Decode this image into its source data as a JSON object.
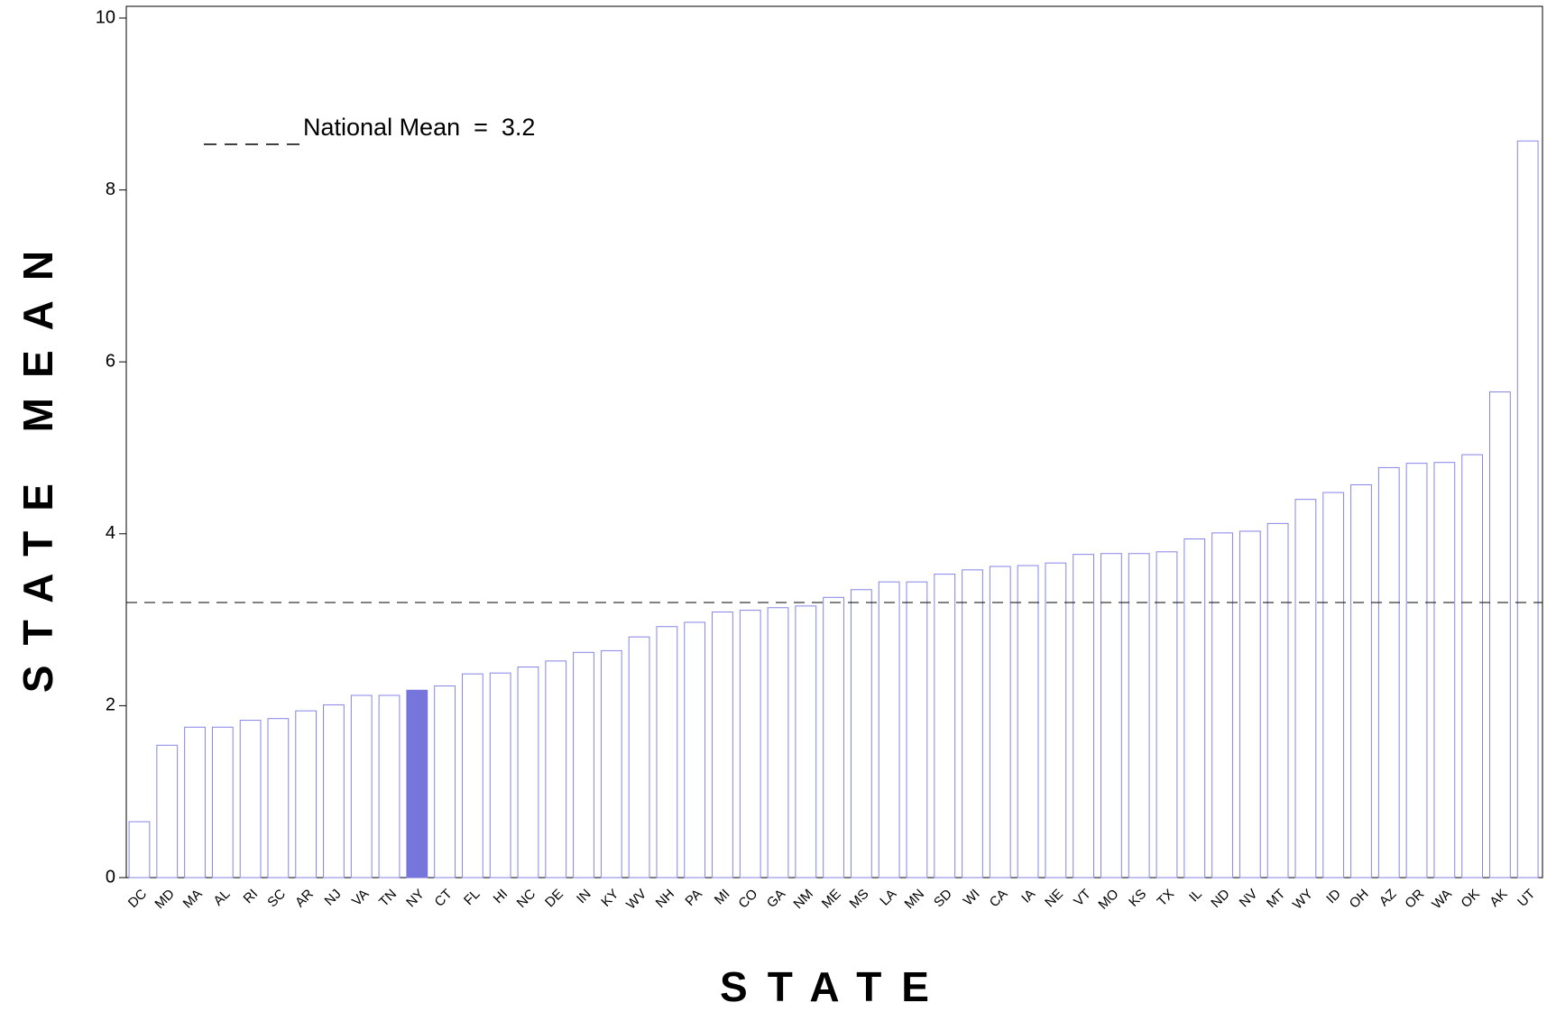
{
  "chart_data": {
    "type": "bar",
    "x_label": "STATE",
    "y_label": "STATE MEAN",
    "categories": [
      "DC",
      "MD",
      "MA",
      "AL",
      "RI",
      "SC",
      "AR",
      "NJ",
      "VA",
      "TN",
      "NY",
      "CT",
      "FL",
      "HI",
      "NC",
      "DE",
      "IN",
      "KY",
      "WV",
      "NH",
      "PA",
      "MI",
      "CO",
      "GA",
      "NM",
      "ME",
      "MS",
      "LA",
      "MN",
      "SD",
      "WI",
      "CA",
      "IA",
      "NE",
      "VT",
      "MO",
      "KS",
      "TX",
      "IL",
      "ND",
      "NV",
      "MT",
      "WY",
      "ID",
      "OH",
      "AZ",
      "OR",
      "WA",
      "OK",
      "AK",
      "UT"
    ],
    "values": [
      0.65,
      1.54,
      1.75,
      1.75,
      1.83,
      1.85,
      1.94,
      2.01,
      2.12,
      2.12,
      2.18,
      2.23,
      2.37,
      2.38,
      2.45,
      2.52,
      2.62,
      2.64,
      2.8,
      2.92,
      2.97,
      3.09,
      3.11,
      3.14,
      3.16,
      3.26,
      3.35,
      3.44,
      3.44,
      3.53,
      3.58,
      3.62,
      3.63,
      3.66,
      3.76,
      3.77,
      3.77,
      3.79,
      3.94,
      4.01,
      4.03,
      4.12,
      4.4,
      4.48,
      4.57,
      4.77,
      4.82,
      4.83,
      4.92,
      5.65,
      8.57
    ],
    "color": "#8585e6",
    "highlight": "NY",
    "highlight_color": "#7575dc",
    "reference_line": 3.2,
    "reference_label": "National Mean  =  3.2",
    "ylim": [
      0,
      10
    ],
    "yticks": [
      0,
      2,
      4,
      6,
      8,
      10
    ]
  }
}
